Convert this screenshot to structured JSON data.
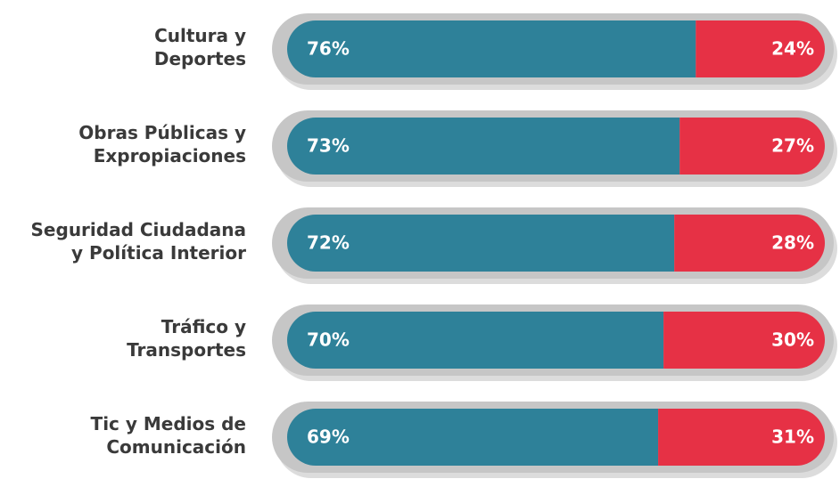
{
  "chart_data": {
    "type": "stacked-bar",
    "orientation": "horizontal",
    "categories": [
      "Cultura y\nDeportes",
      "Obras Públicas y\nExpropiaciones",
      "Seguridad Ciudadana\ny Política Interior",
      "Tráfico y\nTransportes",
      "Tic y Medios de\nComunicación"
    ],
    "series": [
      {
        "color": "#2e8199",
        "values": [
          76,
          73,
          72,
          70,
          69
        ],
        "value_labels": [
          "76%",
          "73%",
          "72%",
          "70%",
          "69%"
        ]
      },
      {
        "color": "#e63145",
        "values": [
          24,
          27,
          28,
          30,
          31
        ],
        "value_labels": [
          "24%",
          "27%",
          "28%",
          "30%",
          "31%"
        ]
      }
    ],
    "xlim": [
      0,
      100
    ]
  }
}
